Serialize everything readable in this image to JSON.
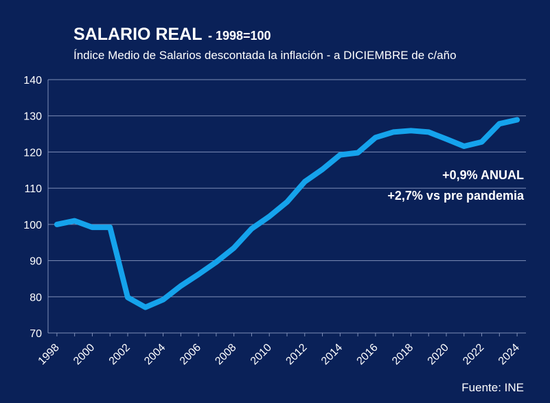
{
  "header": {
    "title": "SALARIO REAL",
    "title_suffix": "- 1998=100",
    "subtitle": "Índice Medio de Salarios descontada la inflación - a DICIEMBRE de c/año"
  },
  "annotations": {
    "line1": "+0,9% ANUAL",
    "line2": "+2,7% vs pre pandemia"
  },
  "source": "Fuente: INE",
  "colors": {
    "background": "#0a2158",
    "line": "#15a3ec",
    "grid": "#7f8fb8",
    "text": "#ffffff"
  },
  "chart_data": {
    "type": "line",
    "title": "SALARIO REAL - 1998=100",
    "subtitle": "Índice Medio de Salarios descontada la inflación - a DICIEMBRE de c/año",
    "x": [
      1998,
      1999,
      2000,
      2001,
      2002,
      2003,
      2004,
      2005,
      2006,
      2007,
      2008,
      2009,
      2010,
      2011,
      2012,
      2013,
      2014,
      2015,
      2016,
      2017,
      2018,
      2019,
      2020,
      2021,
      2022,
      2023,
      2024
    ],
    "series": [
      {
        "values": [
          100.0,
          101.0,
          99.2,
          99.2,
          79.8,
          77.1,
          79.2,
          83.0,
          86.2,
          89.6,
          93.5,
          98.8,
          102.2,
          106.2,
          111.8,
          115.2,
          119.2,
          119.8,
          124.0,
          125.5,
          125.9,
          125.5,
          123.6,
          121.6,
          122.8,
          127.8,
          128.9
        ]
      }
    ],
    "xticks": [
      "1998",
      "2000",
      "2002",
      "2004",
      "2006",
      "2008",
      "2010",
      "2012",
      "2014",
      "2016",
      "2018",
      "2020",
      "2022",
      "2024"
    ],
    "yticks": [
      "70",
      "80",
      "90",
      "100",
      "110",
      "120",
      "130",
      "140"
    ],
    "ylim": [
      70,
      140
    ],
    "xlim": [
      1997.5,
      2024.5
    ],
    "xlabel": "",
    "ylabel": "",
    "grid": true,
    "legend": "none"
  }
}
